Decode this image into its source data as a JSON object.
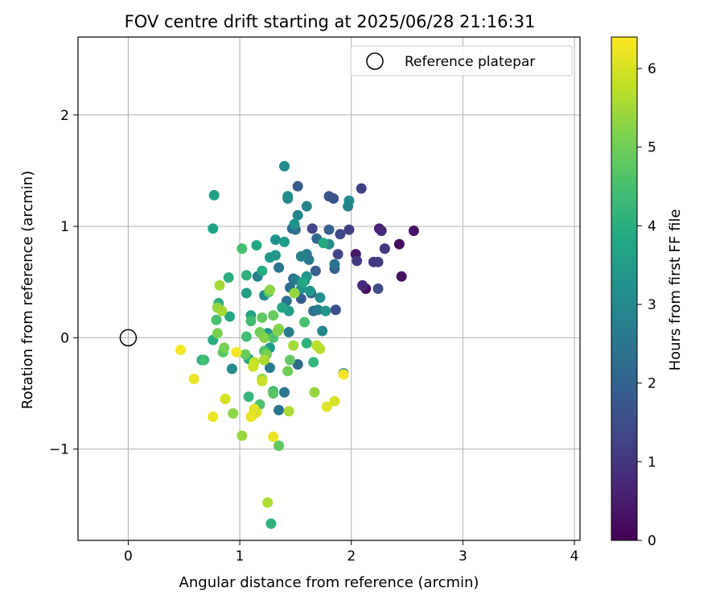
{
  "chart_data": {
    "type": "scatter",
    "title": "FOV centre drift starting at 2025/06/28 21:16:31",
    "xlabel": "Angular distance from reference (arcmin)",
    "ylabel": "Rotation from reference (arcmin)",
    "xlim": [
      -0.45,
      4.05
    ],
    "ylim": [
      -1.82,
      2.7
    ],
    "x_ticks": [
      0,
      1,
      2,
      3,
      4
    ],
    "x_tick_labels": [
      "0",
      "1",
      "2",
      "3",
      "4"
    ],
    "y_ticks": [
      -1,
      0,
      1,
      2
    ],
    "y_tick_labels": [
      "−1",
      "0",
      "1",
      "2"
    ],
    "grid": true,
    "legend": {
      "placement": "top-right",
      "entries": [
        {
          "label": "Reference platepar",
          "marker": "open-circle"
        }
      ]
    },
    "reference_point": {
      "x": 0,
      "y": 0
    },
    "colormap": "viridis",
    "colorbar": {
      "label": "Hours from first FF file",
      "range": [
        0,
        6.4
      ],
      "ticks": [
        0,
        1,
        2,
        3,
        4,
        5,
        6
      ],
      "tick_labels": [
        "0",
        "1",
        "2",
        "3",
        "4",
        "5",
        "6"
      ]
    },
    "points": [
      {
        "x": 2.13,
        "y": 0.44,
        "t": 0.2
      },
      {
        "x": 2.43,
        "y": 0.84,
        "t": 0.2
      },
      {
        "x": 2.56,
        "y": 0.96,
        "t": 0.3
      },
      {
        "x": 2.45,
        "y": 0.55,
        "t": 0.3
      },
      {
        "x": 2.04,
        "y": 0.75,
        "t": 0.4
      },
      {
        "x": 2.25,
        "y": 0.98,
        "t": 0.6
      },
      {
        "x": 2.27,
        "y": 0.96,
        "t": 0.7
      },
      {
        "x": 2.1,
        "y": 0.47,
        "t": 0.8
      },
      {
        "x": 2.3,
        "y": 0.8,
        "t": 1.0
      },
      {
        "x": 2.2,
        "y": 0.68,
        "t": 1.0
      },
      {
        "x": 2.24,
        "y": 0.68,
        "t": 1.1
      },
      {
        "x": 2.05,
        "y": 0.69,
        "t": 1.1
      },
      {
        "x": 2.09,
        "y": 1.34,
        "t": 1.2
      },
      {
        "x": 1.98,
        "y": 0.97,
        "t": 1.2
      },
      {
        "x": 1.88,
        "y": 0.75,
        "t": 1.3
      },
      {
        "x": 1.9,
        "y": 0.93,
        "t": 1.4
      },
      {
        "x": 1.65,
        "y": 0.98,
        "t": 1.3
      },
      {
        "x": 1.86,
        "y": 0.25,
        "t": 1.5
      },
      {
        "x": 2.24,
        "y": 0.44,
        "t": 1.5
      },
      {
        "x": 1.84,
        "y": 1.25,
        "t": 1.6
      },
      {
        "x": 1.8,
        "y": 1.27,
        "t": 1.7
      },
      {
        "x": 1.52,
        "y": 1.36,
        "t": 1.8
      },
      {
        "x": 1.58,
        "y": 0.51,
        "t": 1.8
      },
      {
        "x": 1.68,
        "y": 0.6,
        "t": 1.9
      },
      {
        "x": 1.55,
        "y": 0.35,
        "t": 1.9
      },
      {
        "x": 1.8,
        "y": 0.97,
        "t": 2.0
      },
      {
        "x": 1.85,
        "y": 0.62,
        "t": 2.0
      },
      {
        "x": 1.64,
        "y": 0.4,
        "t": 2.1
      },
      {
        "x": 1.48,
        "y": 0.53,
        "t": 2.1
      },
      {
        "x": 1.69,
        "y": 0.89,
        "t": 2.2
      },
      {
        "x": 1.52,
        "y": -0.24,
        "t": 2.2
      },
      {
        "x": 1.66,
        "y": 0.24,
        "t": 2.3
      },
      {
        "x": 1.45,
        "y": 0.45,
        "t": 2.3
      },
      {
        "x": 1.47,
        "y": 0.98,
        "t": 2.3
      },
      {
        "x": 1.85,
        "y": 0.66,
        "t": 2.4
      },
      {
        "x": 1.5,
        "y": 0.97,
        "t": 2.4
      },
      {
        "x": 1.42,
        "y": 0.33,
        "t": 2.4
      },
      {
        "x": 1.35,
        "y": 0.63,
        "t": 2.5
      },
      {
        "x": 1.4,
        "y": -0.49,
        "t": 2.5
      },
      {
        "x": 1.35,
        "y": -0.65,
        "t": 2.5
      },
      {
        "x": 1.6,
        "y": 0.75,
        "t": 2.6
      },
      {
        "x": 1.7,
        "y": 0.25,
        "t": 2.6
      },
      {
        "x": 1.62,
        "y": 0.7,
        "t": 2.6
      },
      {
        "x": 1.27,
        "y": -0.27,
        "t": 2.6
      },
      {
        "x": 1.44,
        "y": 0.05,
        "t": 2.7
      },
      {
        "x": 1.16,
        "y": 0.55,
        "t": 2.7
      },
      {
        "x": 1.97,
        "y": 1.18,
        "t": 2.8
      },
      {
        "x": 1.5,
        "y": 0.52,
        "t": 2.8
      },
      {
        "x": 1.55,
        "y": 0.73,
        "t": 2.8
      },
      {
        "x": 1.74,
        "y": 0.06,
        "t": 2.9
      },
      {
        "x": 1.6,
        "y": 1.18,
        "t": 2.9
      },
      {
        "x": 1.52,
        "y": 1.1,
        "t": 2.9
      },
      {
        "x": 1.43,
        "y": 1.25,
        "t": 2.9
      },
      {
        "x": 1.93,
        "y": -0.32,
        "t": 3.0
      },
      {
        "x": 1.98,
        "y": 1.23,
        "t": 3.0
      },
      {
        "x": 1.8,
        "y": 0.84,
        "t": 3.0
      },
      {
        "x": 1.22,
        "y": 0.38,
        "t": 3.0
      },
      {
        "x": 0.93,
        "y": -0.28,
        "t": 3.1
      },
      {
        "x": 1.43,
        "y": 1.27,
        "t": 3.1
      },
      {
        "x": 1.4,
        "y": 1.54,
        "t": 3.1
      },
      {
        "x": 1.72,
        "y": 0.36,
        "t": 3.1
      },
      {
        "x": 1.32,
        "y": 0.88,
        "t": 3.2
      },
      {
        "x": 1.55,
        "y": 0.44,
        "t": 3.2
      },
      {
        "x": 1.6,
        "y": 0.55,
        "t": 3.3
      },
      {
        "x": 1.63,
        "y": 0.42,
        "t": 3.3
      },
      {
        "x": 1.49,
        "y": 1.02,
        "t": 3.3
      },
      {
        "x": 1.25,
        "y": 0.04,
        "t": 3.3
      },
      {
        "x": 1.77,
        "y": 0.24,
        "t": 3.3
      },
      {
        "x": 1.32,
        "y": 0.74,
        "t": 3.4
      },
      {
        "x": 1.27,
        "y": 0.72,
        "t": 3.4
      },
      {
        "x": 1.4,
        "y": 0.86,
        "t": 3.5
      },
      {
        "x": 1.44,
        "y": 0.24,
        "t": 3.5
      },
      {
        "x": 1.27,
        "y": -0.09,
        "t": 3.5
      },
      {
        "x": 1.06,
        "y": 0.4,
        "t": 3.6
      },
      {
        "x": 0.77,
        "y": 1.28,
        "t": 3.6
      },
      {
        "x": 0.76,
        "y": 0.98,
        "t": 3.7
      },
      {
        "x": 1.1,
        "y": 0.2,
        "t": 3.7
      },
      {
        "x": 1.15,
        "y": 0.83,
        "t": 3.8
      },
      {
        "x": 1.57,
        "y": 0.5,
        "t": 3.8
      },
      {
        "x": 0.91,
        "y": 0.19,
        "t": 3.8
      },
      {
        "x": 1.38,
        "y": 0.27,
        "t": 3.8
      },
      {
        "x": 1.2,
        "y": 0.6,
        "t": 3.9
      },
      {
        "x": 1.08,
        "y": -0.19,
        "t": 3.9
      },
      {
        "x": 1.75,
        "y": 0.85,
        "t": 3.9
      },
      {
        "x": 0.9,
        "y": 0.54,
        "t": 4.0
      },
      {
        "x": 0.76,
        "y": -0.02,
        "t": 4.0
      },
      {
        "x": 0.81,
        "y": 0.31,
        "t": 4.0
      },
      {
        "x": 0.66,
        "y": -0.2,
        "t": 4.0
      },
      {
        "x": 1.28,
        "y": -1.67,
        "t": 4.1
      },
      {
        "x": 1.06,
        "y": 0.56,
        "t": 4.1
      },
      {
        "x": 1.6,
        "y": -0.05,
        "t": 4.1
      },
      {
        "x": 1.66,
        "y": -0.22,
        "t": 4.2
      },
      {
        "x": 1.08,
        "y": -0.53,
        "t": 4.2
      },
      {
        "x": 1.3,
        "y": -0.48,
        "t": 4.3
      },
      {
        "x": 1.1,
        "y": 0.15,
        "t": 4.4
      },
      {
        "x": 0.68,
        "y": -0.2,
        "t": 4.4
      },
      {
        "x": 1.06,
        "y": 0.01,
        "t": 4.4
      },
      {
        "x": 1.02,
        "y": 0.8,
        "t": 4.5
      },
      {
        "x": 0.79,
        "y": 0.16,
        "t": 4.5
      },
      {
        "x": 1.58,
        "y": 0.14,
        "t": 4.5
      },
      {
        "x": 1.26,
        "y": 0.41,
        "t": 4.6
      },
      {
        "x": 1.18,
        "y": -0.6,
        "t": 4.6
      },
      {
        "x": 1.3,
        "y": 0.0,
        "t": 4.6
      },
      {
        "x": 1.22,
        "y": -0.12,
        "t": 4.6
      },
      {
        "x": 0.85,
        "y": -0.13,
        "t": 4.7
      },
      {
        "x": 1.3,
        "y": -0.5,
        "t": 4.7
      },
      {
        "x": 1.35,
        "y": -0.97,
        "t": 4.8
      },
      {
        "x": 1.45,
        "y": -0.2,
        "t": 4.8
      },
      {
        "x": 1.2,
        "y": 0.18,
        "t": 4.8
      },
      {
        "x": 1.05,
        "y": -0.15,
        "t": 4.9
      },
      {
        "x": 1.3,
        "y": 0.2,
        "t": 4.9
      },
      {
        "x": 1.43,
        "y": -0.3,
        "t": 5.0
      },
      {
        "x": 1.18,
        "y": 0.05,
        "t": 5.0
      },
      {
        "x": 1.24,
        "y": -0.15,
        "t": 5.1
      },
      {
        "x": 0.8,
        "y": 0.04,
        "t": 5.1
      },
      {
        "x": 0.86,
        "y": -0.09,
        "t": 5.1
      },
      {
        "x": 1.34,
        "y": 0.06,
        "t": 5.2
      },
      {
        "x": 1.35,
        "y": 0.08,
        "t": 5.2
      },
      {
        "x": 1.22,
        "y": 0.0,
        "t": 5.2
      },
      {
        "x": 1.27,
        "y": 0.43,
        "t": 5.3
      },
      {
        "x": 1.2,
        "y": -0.37,
        "t": 5.3
      },
      {
        "x": 0.8,
        "y": 0.27,
        "t": 5.3
      },
      {
        "x": 0.94,
        "y": -0.68,
        "t": 5.3
      },
      {
        "x": 1.02,
        "y": -0.88,
        "t": 5.4
      },
      {
        "x": 1.67,
        "y": -0.49,
        "t": 5.4
      },
      {
        "x": 1.49,
        "y": 0.4,
        "t": 5.4
      },
      {
        "x": 0.82,
        "y": 0.47,
        "t": 5.5
      },
      {
        "x": 0.84,
        "y": 0.24,
        "t": 5.5
      },
      {
        "x": 1.48,
        "y": -0.07,
        "t": 5.5
      },
      {
        "x": 1.25,
        "y": -1.48,
        "t": 5.6
      },
      {
        "x": 1.44,
        "y": -0.66,
        "t": 5.6
      },
      {
        "x": 1.22,
        "y": -0.2,
        "t": 5.6
      },
      {
        "x": 1.69,
        "y": -0.07,
        "t": 5.7
      },
      {
        "x": 1.72,
        "y": -0.1,
        "t": 5.7
      },
      {
        "x": 1.13,
        "y": -0.22,
        "t": 5.8
      },
      {
        "x": 1.12,
        "y": -0.26,
        "t": 5.9
      },
      {
        "x": 1.2,
        "y": -0.39,
        "t": 5.9
      },
      {
        "x": 0.87,
        "y": -0.55,
        "t": 6.0
      },
      {
        "x": 1.85,
        "y": -0.57,
        "t": 6.0
      },
      {
        "x": 1.78,
        "y": -0.62,
        "t": 6.1
      },
      {
        "x": 1.13,
        "y": -0.64,
        "t": 6.1
      },
      {
        "x": 1.12,
        "y": -0.69,
        "t": 6.1
      },
      {
        "x": 1.15,
        "y": -0.67,
        "t": 6.1
      },
      {
        "x": 0.76,
        "y": -0.71,
        "t": 6.2
      },
      {
        "x": 1.1,
        "y": -0.71,
        "t": 6.2
      },
      {
        "x": 1.3,
        "y": -0.89,
        "t": 6.2
      },
      {
        "x": 0.59,
        "y": -0.37,
        "t": 6.2
      },
      {
        "x": 0.47,
        "y": -0.11,
        "t": 6.3
      },
      {
        "x": 0.97,
        "y": -0.13,
        "t": 6.3
      },
      {
        "x": 1.93,
        "y": -0.33,
        "t": 6.3
      }
    ]
  }
}
